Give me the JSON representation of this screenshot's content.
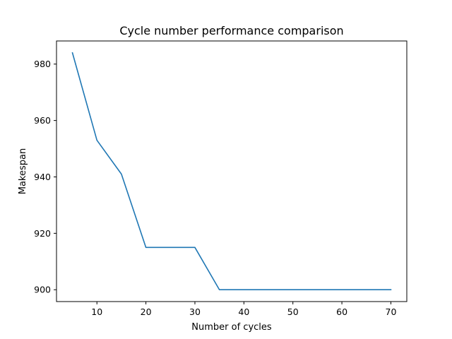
{
  "chart_data": {
    "type": "line",
    "title": "Cycle number performance comparison",
    "xlabel": "Number of cycles",
    "ylabel": "Makespan",
    "xlim": [
      1.75,
      73.25
    ],
    "ylim": [
      895.8,
      988.2
    ],
    "xticks": [
      10,
      20,
      30,
      40,
      50,
      60,
      70
    ],
    "yticks": [
      900,
      920,
      940,
      960,
      980
    ],
    "grid": false,
    "legend": "none",
    "series": [
      {
        "color": "#1f77b4",
        "x": [
          5,
          10,
          15,
          20,
          25,
          30,
          35,
          40,
          45,
          50,
          55,
          60,
          65,
          70
        ],
        "y": [
          984,
          953,
          941,
          915,
          915,
          915,
          900,
          900,
          900,
          900,
          900,
          900,
          900,
          900
        ]
      }
    ]
  }
}
